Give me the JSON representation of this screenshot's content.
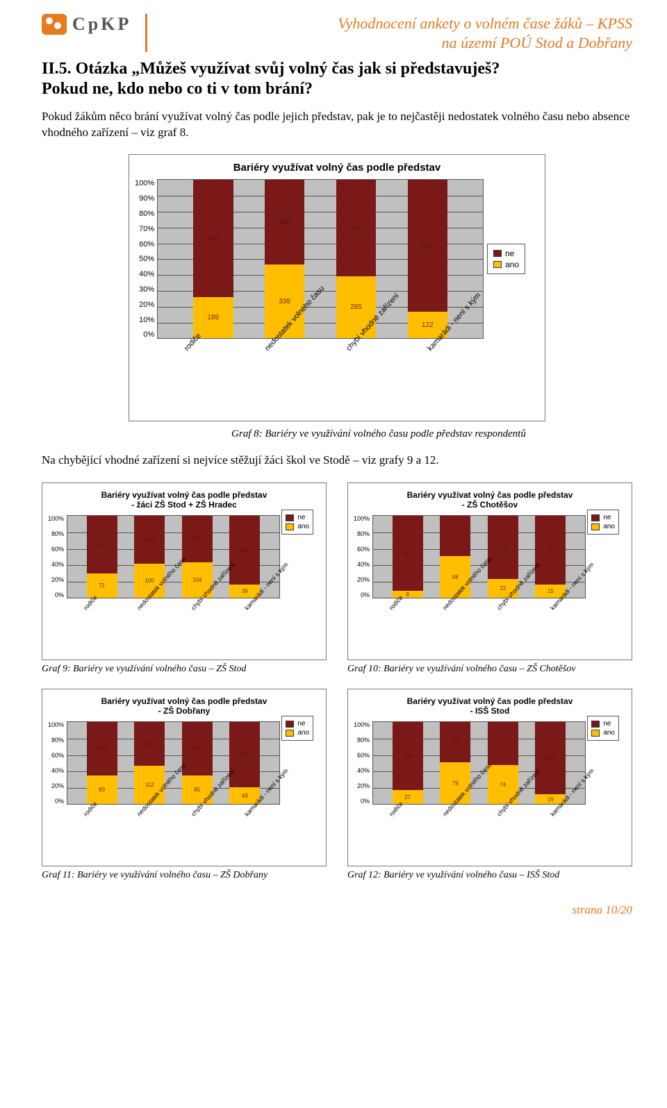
{
  "colors": {
    "accent": "#e57a1e",
    "ano": "#ffbf00",
    "ne": "#7b1818",
    "plotbg": "#c0c0c0",
    "border": "#555555"
  },
  "header": {
    "logo_text": "CpKP",
    "subtitle_line1": "Vyhodnocení ankety o volném čase žáků – KPSS",
    "subtitle_line2": "na území POÚ Stod a Dobřany"
  },
  "question": {
    "line1": "II.5. Otázka „Můžeš využívat svůj volný čas jak si představuješ?",
    "line2": "Pokud ne, kdo nebo co ti v tom brání?"
  },
  "para1": "Pokud žákům něco brání využívat volný čas podle jejich představ, pak je to nejčastěji nedostatek volného času nebo absence vhodného zařízení – viz graf 8.",
  "main_chart": {
    "title": "Bariéry využívat volný čas podle představ",
    "yticks": [
      "100%",
      "90%",
      "80%",
      "70%",
      "60%",
      "50%",
      "40%",
      "30%",
      "20%",
      "10%",
      "0%"
    ],
    "categories": [
      "rodiče",
      "nedostatek volného času",
      "chybí vhodné zařízení",
      "kamarádi - není s kým"
    ],
    "ano": [
      189,
      339,
      285,
      122
    ],
    "ne": [
      537,
      388,
      441,
      603
    ],
    "legend": {
      "ne": "ne",
      "ano": "ano"
    },
    "caption": "Graf 8: Bariéry ve využívání volného času podle představ respondentů"
  },
  "para2": "Na chybějící vhodné zařízení si nejvíce stěžují žáci škol ve Stodě – viz grafy 9 a 12.",
  "small_common": {
    "yticks": [
      "100%",
      "80%",
      "60%",
      "40%",
      "20%",
      "0%"
    ],
    "categories": [
      "rodiče",
      "nedostatek volného času",
      "chybí vhodné zařízení",
      "kamarádi - není s kým"
    ],
    "legend": {
      "ne": "ne",
      "ano": "ano"
    }
  },
  "chart9": {
    "title": "Bariéry využívat volný čas podle představ\n- žáci ZŠ Stod + ZŠ Hradec",
    "ano": [
      71,
      100,
      104,
      39
    ],
    "ne": [
      168,
      139,
      134,
      198
    ],
    "caption": "Graf 9: Bariéry ve využívání volného času – ZŠ Stod"
  },
  "chart10": {
    "title": "Bariéry využívat volný čas podle představ\n- ZŠ Chotěšov",
    "ano": [
      8,
      48,
      22,
      15
    ],
    "ne": [
      85,
      46,
      74,
      78
    ],
    "caption": "Graf 10: Bariéry ve využívání volného času – ZŠ Chotěšov"
  },
  "chart11": {
    "title": "Bariéry využívat volný čas podle představ\n- ZŠ Dobřany",
    "ano": [
      83,
      112,
      85,
      49
    ],
    "ne": [
      156,
      128,
      155,
      190
    ],
    "caption": "Graf 11: Bariéry ve využívání volného času – ZŠ Dobřany"
  },
  "chart12": {
    "title": "Bariéry využívat volný čas podle představ\n- ISŠ Stod",
    "ano": [
      27,
      79,
      74,
      19
    ],
    "ne": [
      128,
      76,
      81,
      136
    ],
    "caption": "Graf 12: Bariéry ve využívání volného času – ISŠ Stod"
  },
  "footer": "strana 10/20"
}
